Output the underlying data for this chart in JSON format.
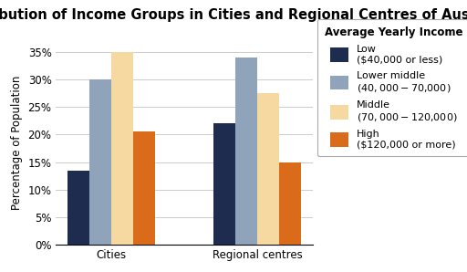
{
  "title": "Distribution of Income Groups in Cities and Regional Centres of Australia",
  "ylabel": "Percentage of Population",
  "categories": [
    "Cities",
    "Regional centres"
  ],
  "legend_labels": [
    "Low\n($40,000 or less)",
    "Lower middle\n($40,000-$70,000)",
    "Middle\n($70,000-$120,000)",
    "High\n($120,000 or more)"
  ],
  "legend_title": "Average Yearly Income",
  "values": {
    "Cities": [
      13.5,
      30.0,
      35.0,
      20.5
    ],
    "Regional centres": [
      22.0,
      34.0,
      27.5,
      15.0
    ]
  },
  "colors": [
    "#1e2d4f",
    "#8fa3bb",
    "#f5d9a0",
    "#d96b1a"
  ],
  "ylim": [
    0,
    37
  ],
  "yticks": [
    0,
    5,
    10,
    15,
    20,
    25,
    30,
    35
  ],
  "background_color": "#ffffff",
  "bar_width": 0.15,
  "title_fontsize": 10.5,
  "axis_fontsize": 8.5,
  "tick_fontsize": 8.5,
  "legend_fontsize": 8.0,
  "legend_title_fontsize": 8.5
}
